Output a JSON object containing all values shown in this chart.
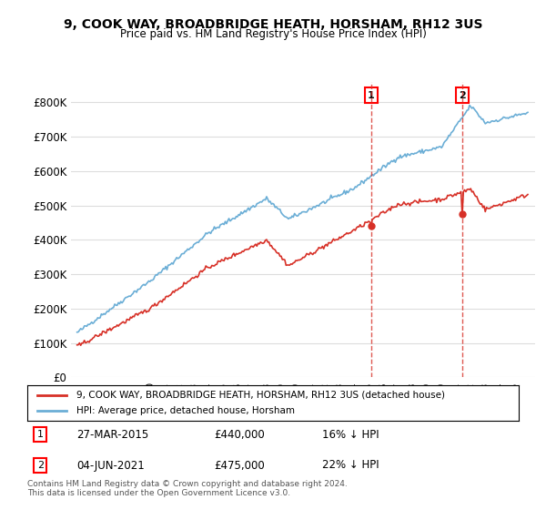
{
  "title": "9, COOK WAY, BROADBRIDGE HEATH, HORSHAM, RH12 3US",
  "subtitle": "Price paid vs. HM Land Registry's House Price Index (HPI)",
  "ylabel": "",
  "ylim": [
    0,
    850000
  ],
  "yticks": [
    0,
    100000,
    200000,
    300000,
    400000,
    500000,
    600000,
    700000,
    800000
  ],
  "ytick_labels": [
    "£0",
    "£100K",
    "£200K",
    "£300K",
    "£400K",
    "£500K",
    "£600K",
    "£700K",
    "£800K"
  ],
  "hpi_color": "#6baed6",
  "price_color": "#d73027",
  "marker1_date_idx": 243,
  "marker1_label": "1",
  "marker1_date_str": "27-MAR-2015",
  "marker1_price": 440000,
  "marker1_pct": "16%",
  "marker2_date_idx": 318,
  "marker2_label": "2",
  "marker2_date_str": "04-JUN-2021",
  "marker2_price": 475000,
  "marker2_pct": "22%",
  "legend_line1": "9, COOK WAY, BROADBRIDGE HEATH, HORSHAM, RH12 3US (detached house)",
  "legend_line2": "HPI: Average price, detached house, Horsham",
  "footnote": "Contains HM Land Registry data © Crown copyright and database right 2024.\nThis data is licensed under the Open Government Licence v3.0.",
  "background_color": "#ffffff",
  "grid_color": "#dddddd"
}
